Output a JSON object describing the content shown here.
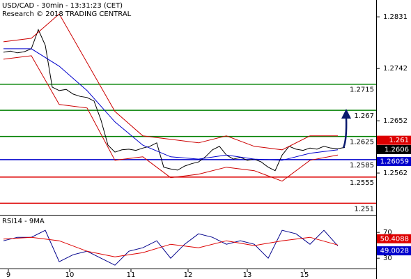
{
  "chart_data": [
    {
      "type": "line",
      "title": "USD/CAD - 30min - 13:31:23 (CET)",
      "subtitle": "Research © 2018 TRADING CENTRAL",
      "xlim": [
        -0.5,
        53.5
      ],
      "xticks": [
        {
          "value": 0.7,
          "label": "9"
        },
        {
          "value": 9.5,
          "label": "10"
        },
        {
          "value": 18.3,
          "label": "11"
        },
        {
          "value": 26.5,
          "label": "12"
        },
        {
          "value": 35,
          "label": "13"
        },
        {
          "value": 43.2,
          "label": "15"
        }
      ],
      "ylim": [
        1.249,
        1.286
      ],
      "yticks": [
        1.2831,
        1.2742,
        1.2652,
        1.2562
      ],
      "series": [
        {
          "color": "#000000",
          "x": [
            0,
            1,
            2,
            3,
            4,
            5,
            6,
            7,
            8,
            9,
            10,
            11,
            12,
            13,
            14,
            15,
            16,
            17,
            18,
            19,
            20,
            21,
            22,
            23,
            24,
            25,
            26,
            27,
            28,
            29,
            30,
            31,
            32,
            33,
            34,
            35,
            36,
            37,
            38,
            39,
            40,
            41,
            42,
            43,
            44,
            45,
            46,
            47,
            48,
            49
          ],
          "values": [
            1.277,
            1.2772,
            1.2769,
            1.2771,
            1.2776,
            1.2809,
            1.2782,
            1.271,
            1.2704,
            1.2706,
            1.2698,
            1.2694,
            1.2692,
            1.2686,
            1.2653,
            1.261,
            1.2598,
            1.2602,
            1.2603,
            1.2601,
            1.2605,
            1.2608,
            1.2614,
            1.2572,
            1.2569,
            1.2567,
            1.2574,
            1.2578,
            1.2581,
            1.259,
            1.2602,
            1.2608,
            1.2593,
            1.2586,
            1.2589,
            1.2584,
            1.2586,
            1.2581,
            1.2572,
            1.2566,
            1.2593,
            1.2608,
            1.2603,
            1.2601,
            1.2605,
            1.2603,
            1.2608,
            1.2605,
            1.2604,
            1.2606
          ]
        },
        {
          "color": "#0000cc",
          "x": [
            0,
            4,
            8,
            12,
            16,
            20,
            24,
            28,
            32,
            36,
            40,
            44,
            48
          ],
          "values": [
            1.2776,
            1.2776,
            1.2746,
            1.2704,
            1.265,
            1.261,
            1.259,
            1.2586,
            1.2593,
            1.2586,
            1.2584,
            1.2596,
            1.2602
          ]
        },
        {
          "color": "#cc0000",
          "x": [
            0,
            4,
            8,
            12,
            16,
            20,
            24,
            28,
            32,
            36,
            40,
            44,
            48
          ],
          "values": [
            1.2788,
            1.2794,
            1.2836,
            1.2752,
            1.2668,
            1.2626,
            1.262,
            1.2614,
            1.2626,
            1.2608,
            1.2602,
            1.2626,
            1.2626
          ]
        },
        {
          "color": "#cc0000",
          "x": [
            0,
            4,
            8,
            12,
            16,
            20,
            24,
            28,
            32,
            36,
            40,
            44,
            48
          ],
          "values": [
            1.2758,
            1.2764,
            1.268,
            1.2674,
            1.2584,
            1.259,
            1.2554,
            1.256,
            1.2572,
            1.2566,
            1.2548,
            1.2584,
            1.2593
          ]
        }
      ],
      "levels": [
        {
          "value": 1.2715,
          "color": "#008000"
        },
        {
          "value": 1.267,
          "color": "#008000"
        },
        {
          "value": 1.2625,
          "color": "#008000"
        },
        {
          "value": 1.2585,
          "color": "#0000cc"
        },
        {
          "value": 1.2555,
          "color": "#dd0000"
        },
        {
          "value": 1.251,
          "color": "#dd0000"
        }
      ],
      "tags": [
        {
          "value": 1.261,
          "color": "#dd0000"
        },
        {
          "value": 1.2606,
          "color": "#000000"
        },
        {
          "value": 1.26059,
          "color": "#0000cc"
        }
      ]
    },
    {
      "type": "line",
      "title": "RSI14 - 9MA",
      "xlim": [
        -0.5,
        53.5
      ],
      "ylim": [
        14,
        95
      ],
      "yticks": [
        70,
        30
      ],
      "series": [
        {
          "color": "#00008b",
          "x": [
            0,
            2,
            4,
            6,
            8,
            10,
            12,
            14,
            16,
            18,
            20,
            22,
            24,
            26,
            28,
            30,
            32,
            34,
            36,
            38,
            40,
            42,
            44,
            46,
            48
          ],
          "values": [
            57,
            62.4,
            62.4,
            73.2,
            24.6,
            35.4,
            40.8,
            30,
            19.2,
            40.8,
            46.2,
            57,
            30,
            51.6,
            67.8,
            62.4,
            51.6,
            57,
            51.6,
            30,
            73.2,
            67.8,
            51.6,
            73.2,
            49
          ]
        },
        {
          "color": "#dd0000",
          "x": [
            0,
            4,
            8,
            12,
            16,
            20,
            24,
            28,
            32,
            36,
            40,
            44,
            48
          ],
          "values": [
            59.7,
            62.4,
            57,
            40.8,
            32.1,
            38.6,
            51.6,
            46.2,
            57,
            49.5,
            57,
            62.4,
            50.4
          ]
        }
      ],
      "tags": [
        {
          "value": 50.4088,
          "color": "#dd0000"
        },
        {
          "value": 49.0028,
          "color": "#0000cc"
        }
      ]
    }
  ]
}
